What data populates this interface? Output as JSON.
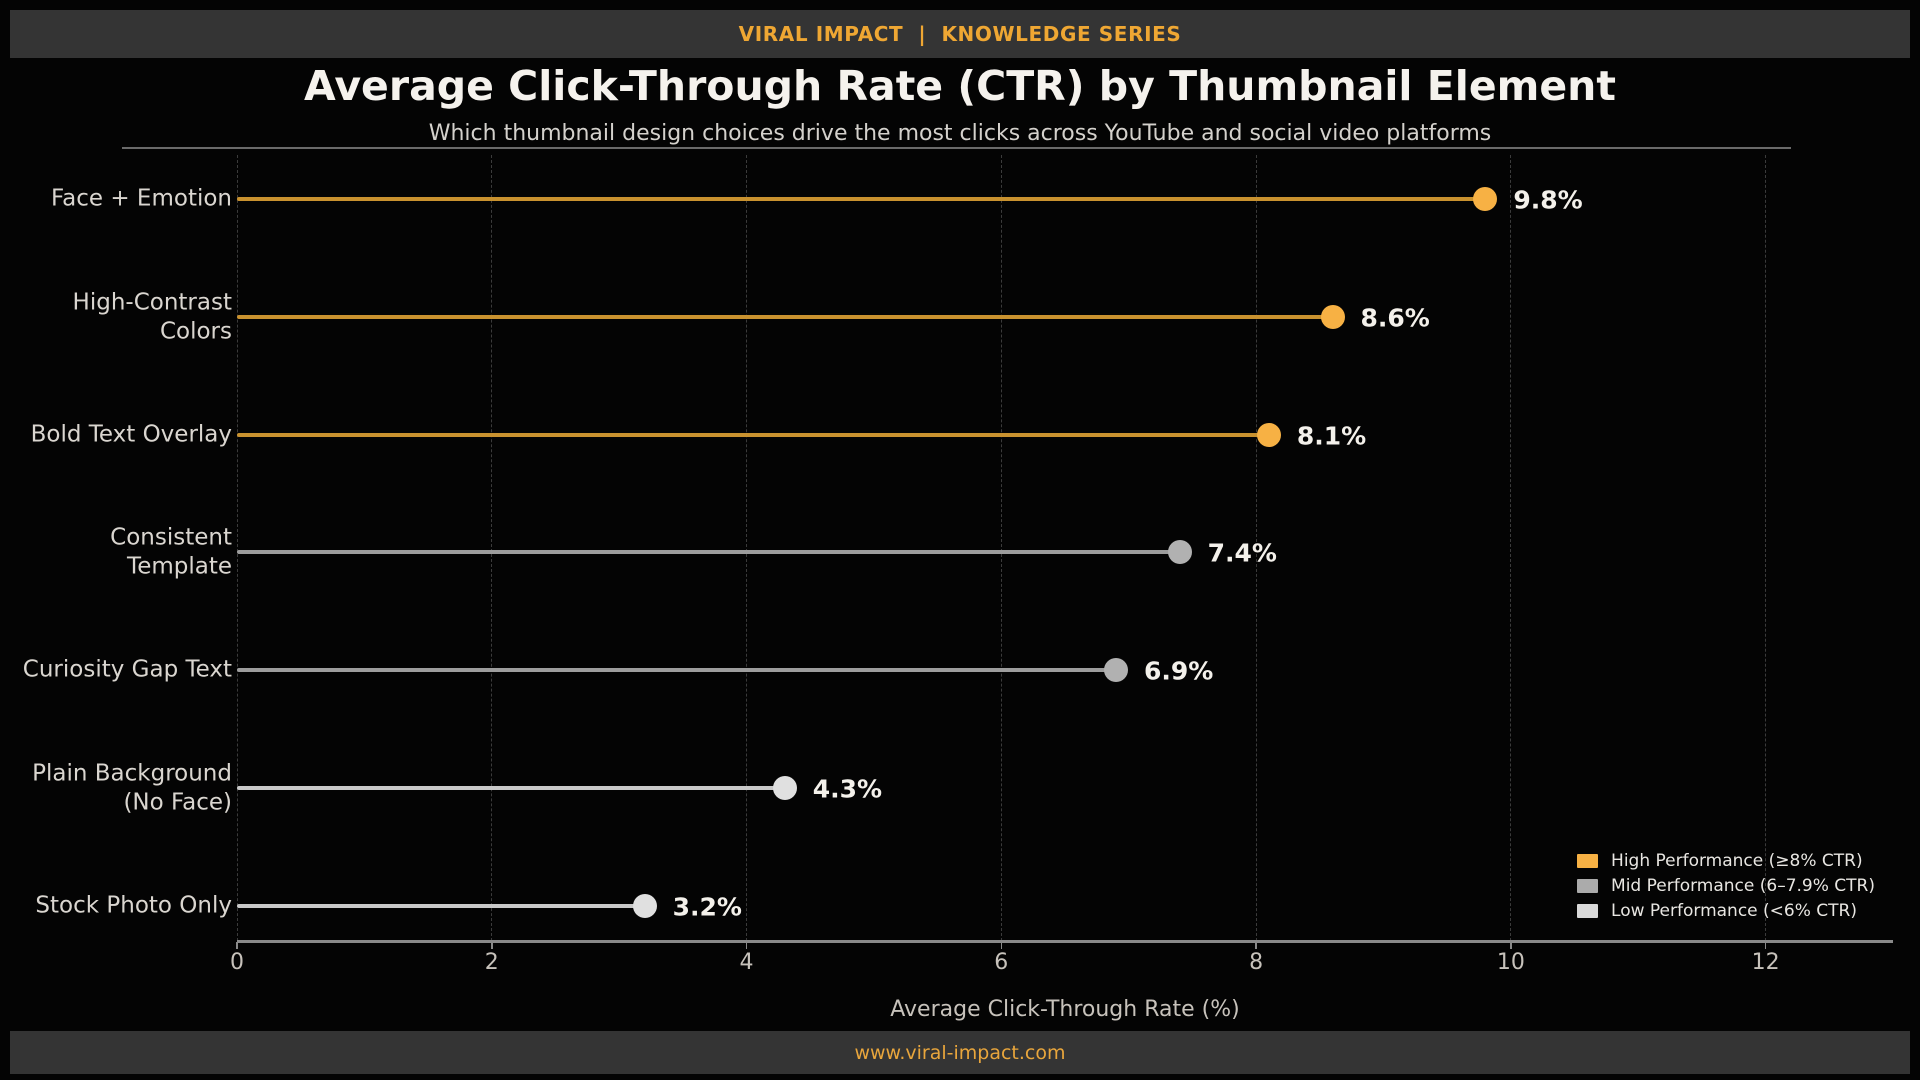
{
  "header": {
    "brand": "VIRAL IMPACT  |  KNOWLEDGE SERIES"
  },
  "footer": {
    "url": "www.viral-impact.com"
  },
  "colors": {
    "background": "#040404",
    "bar_panel": "#343434",
    "accent_orange": "#EFA733",
    "title_text": "#F5F2ED",
    "subtitle_text": "#D4D1CC",
    "axis_text": "#C7C2BB",
    "category_text": "#DAD6D0",
    "value_text": "#F4F1EB",
    "gridline": "#3B3B3B",
    "axis_spine": "#8A8A8A",
    "separator": "#6A6A6A",
    "tier_high_dot": "#F7B144",
    "tier_high_stem": "#C9922F",
    "tier_mid_dot": "#B1B1B1",
    "tier_mid_stem": "#9D9D9D",
    "tier_low_dot": "#E0E0E0",
    "tier_low_stem": "#C9C9C9"
  },
  "chart_data": {
    "type": "bar",
    "variant": "horizontal-lollipop",
    "title": "Average Click-Through Rate (CTR) by Thumbnail Element",
    "subtitle": "Which thumbnail design choices drive the most clicks across YouTube and social video platforms",
    "categories": [
      "Face + Emotion",
      "High-Contrast Colors",
      "Bold Text Overlay",
      "Consistent Template",
      "Curiosity Gap Text",
      "Plain Background\n(No Face)",
      "Stock Photo Only"
    ],
    "values": [
      9.8,
      8.6,
      8.1,
      7.4,
      6.9,
      4.3,
      3.2
    ],
    "value_labels": [
      "9.8%",
      "8.6%",
      "8.1%",
      "7.4%",
      "6.9%",
      "4.3%",
      "3.2%"
    ],
    "tiers": [
      "high",
      "high",
      "high",
      "mid",
      "mid",
      "low",
      "low"
    ],
    "xlabel": "Average Click-Through Rate (%)",
    "xlim": [
      0,
      13
    ],
    "xticks": [
      0,
      2,
      4,
      6,
      8,
      10,
      12
    ],
    "grid": "vertical-dashed",
    "legend": {
      "position": "lower-right",
      "items": [
        {
          "label": "High Performance (≥8% CTR)",
          "tier": "high",
          "color": "#F7B144"
        },
        {
          "label": "Mid Performance (6–7.9% CTR)",
          "tier": "mid",
          "color": "#ABABAB"
        },
        {
          "label": "Low Performance (<6% CTR)",
          "tier": "low",
          "color": "#D9D9D9"
        }
      ]
    }
  }
}
